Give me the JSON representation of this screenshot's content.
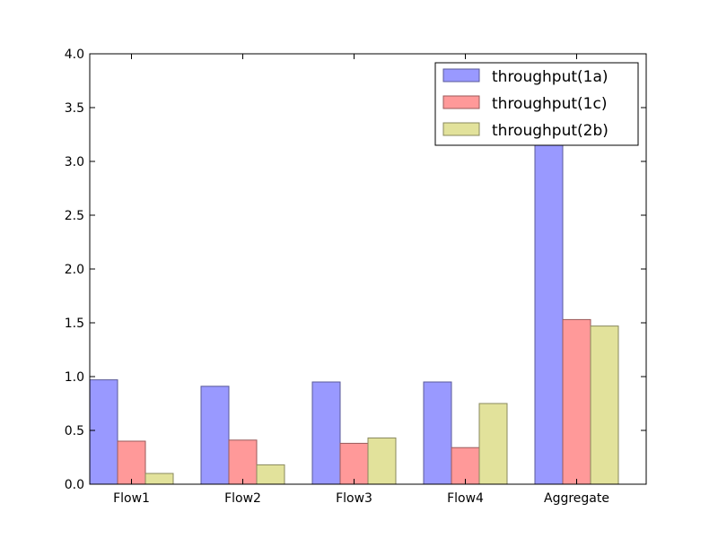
{
  "chart_data": {
    "type": "bar",
    "categories": [
      "Flow1",
      "Flow2",
      "Flow3",
      "Flow4",
      "Aggregate"
    ],
    "series": [
      {
        "name": "throughput(1a)",
        "color": "#9999ff",
        "values": [
          0.97,
          0.91,
          0.95,
          0.95,
          3.75
        ]
      },
      {
        "name": "throughput(1c)",
        "color": "#ff9999",
        "values": [
          0.4,
          0.41,
          0.38,
          0.34,
          1.53
        ]
      },
      {
        "name": "throughput(2b)",
        "color": "#e2e29b",
        "values": [
          0.1,
          0.18,
          0.43,
          0.75,
          1.47
        ]
      }
    ],
    "ylim": [
      0,
      4.0
    ],
    "yticks": [
      "0.0",
      "0.5",
      "1.0",
      "1.5",
      "2.0",
      "2.5",
      "3.0",
      "3.5",
      "4.0"
    ],
    "title": "",
    "xlabel": "",
    "ylabel": "",
    "legend": "top-right",
    "grid": false
  }
}
